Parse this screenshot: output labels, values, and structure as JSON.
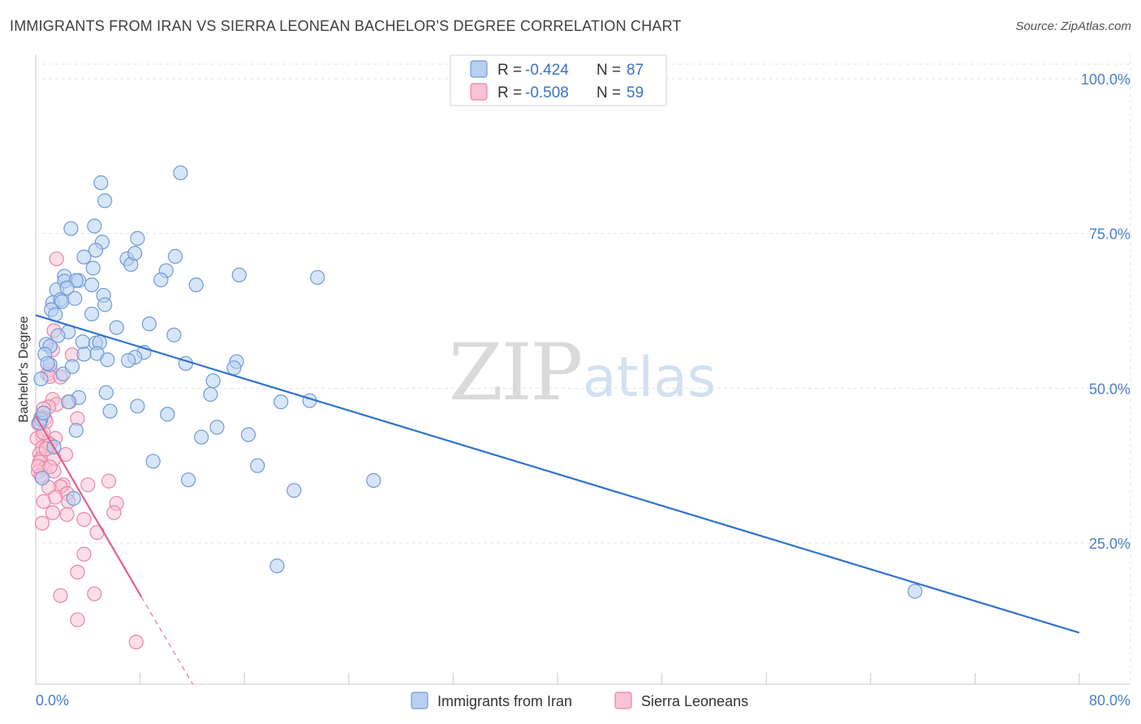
{
  "title": "IMMIGRANTS FROM IRAN VS SIERRA LEONEAN BACHELOR'S DEGREE CORRELATION CHART",
  "source": "Source: ZipAtlas.com",
  "watermark": {
    "zip": "ZIP",
    "atlas": "atlas"
  },
  "colors": {
    "iran_fill": "#b7cff2",
    "iran_stroke": "#6f9ad6",
    "iran_line": "#2f72d0",
    "sierra_fill": "#f7c2d2",
    "sierra_stroke": "#e985a7",
    "sierra_line": "#e0608d",
    "grid": "#e3e3e3",
    "tick_text": "#4a7fc7"
  },
  "legend": {
    "rows": [
      {
        "r_label": "R =",
        "r_value": "-0.424",
        "n_label": "N =",
        "n_value": "87"
      },
      {
        "r_label": "R =",
        "r_value": "-0.508",
        "n_label": "N =",
        "n_value": "59"
      }
    ]
  },
  "chart_data": {
    "type": "scatter",
    "title": "IMMIGRANTS FROM IRAN VS SIERRA LEONEAN BACHELOR'S DEGREE CORRELATION CHART",
    "xlabel": "",
    "ylabel": "Bachelor's Degree",
    "xlim": [
      0,
      80
    ],
    "ylim": [
      0,
      105
    ],
    "x_tick_labels": [
      "0.0%",
      "80.0%"
    ],
    "y_ticks": [
      25,
      50,
      75,
      100
    ],
    "y_tick_labels": [
      "25.0%",
      "50.0%",
      "75.0%",
      "100.0%"
    ],
    "grid": true,
    "legend_position": "top-center",
    "series": [
      {
        "name": "Immigrants from Iran",
        "R": -0.424,
        "N": 87,
        "trend": {
          "x0": 0,
          "y0": 61.8,
          "x1": 80,
          "y1": 10.5
        },
        "points": [
          [
            11.1,
            84.8
          ],
          [
            5.0,
            83.2
          ],
          [
            5.3,
            80.3
          ],
          [
            2.7,
            75.8
          ],
          [
            4.5,
            76.2
          ],
          [
            7.8,
            74.2
          ],
          [
            5.1,
            73.6
          ],
          [
            4.6,
            72.3
          ],
          [
            7.0,
            70.9
          ],
          [
            3.7,
            71.2
          ],
          [
            10.7,
            71.3
          ],
          [
            7.3,
            70.0
          ],
          [
            7.6,
            71.8
          ],
          [
            4.4,
            69.4
          ],
          [
            10.0,
            69.0
          ],
          [
            15.6,
            68.3
          ],
          [
            21.6,
            67.9
          ],
          [
            2.2,
            68.1
          ],
          [
            2.2,
            67.3
          ],
          [
            3.3,
            67.4
          ],
          [
            3.1,
            67.4
          ],
          [
            4.3,
            66.7
          ],
          [
            9.6,
            67.5
          ],
          [
            12.3,
            66.7
          ],
          [
            1.6,
            65.9
          ],
          [
            2.4,
            66.2
          ],
          [
            5.2,
            65.0
          ],
          [
            3.0,
            64.5
          ],
          [
            1.3,
            63.8
          ],
          [
            1.9,
            64.3
          ],
          [
            2.0,
            64.0
          ],
          [
            5.3,
            63.5
          ],
          [
            1.2,
            62.7
          ],
          [
            4.3,
            62.0
          ],
          [
            1.5,
            61.9
          ],
          [
            8.7,
            60.4
          ],
          [
            2.5,
            59.1
          ],
          [
            10.6,
            58.6
          ],
          [
            0.8,
            57.1
          ],
          [
            1.1,
            56.8
          ],
          [
            3.6,
            57.5
          ],
          [
            4.6,
            57.3
          ],
          [
            4.9,
            57.4
          ],
          [
            0.7,
            55.5
          ],
          [
            8.3,
            55.8
          ],
          [
            4.7,
            55.6
          ],
          [
            3.7,
            55.5
          ],
          [
            7.6,
            55.0
          ],
          [
            7.1,
            54.5
          ],
          [
            5.5,
            54.6
          ],
          [
            15.4,
            54.3
          ],
          [
            11.5,
            54.0
          ],
          [
            1.1,
            53.8
          ],
          [
            15.2,
            53.3
          ],
          [
            2.1,
            52.3
          ],
          [
            13.6,
            51.2
          ],
          [
            0.4,
            51.5
          ],
          [
            5.4,
            49.3
          ],
          [
            13.4,
            49.0
          ],
          [
            3.3,
            48.5
          ],
          [
            18.8,
            47.8
          ],
          [
            21.0,
            48.0
          ],
          [
            2.5,
            47.8
          ],
          [
            7.8,
            47.1
          ],
          [
            5.7,
            46.3
          ],
          [
            10.1,
            45.8
          ],
          [
            0.4,
            45.0
          ],
          [
            0.3,
            44.4
          ],
          [
            13.9,
            43.7
          ],
          [
            3.1,
            43.2
          ],
          [
            16.3,
            42.5
          ],
          [
            12.7,
            42.1
          ],
          [
            1.4,
            40.5
          ],
          [
            9.0,
            38.2
          ],
          [
            17.0,
            37.5
          ],
          [
            11.7,
            35.2
          ],
          [
            25.9,
            35.1
          ],
          [
            19.8,
            33.5
          ],
          [
            2.9,
            32.2
          ],
          [
            18.5,
            21.3
          ],
          [
            67.4,
            17.2
          ],
          [
            0.5,
            35.5
          ],
          [
            0.9,
            54.0
          ],
          [
            6.2,
            59.8
          ],
          [
            1.7,
            58.5
          ],
          [
            2.8,
            53.5
          ],
          [
            0.6,
            46.0
          ]
        ]
      },
      {
        "name": "Sierra Leoneans",
        "R": -0.508,
        "N": 59,
        "trend": {
          "x0": 0,
          "y0": 45.5,
          "x1": 8.1,
          "y1": 16.3,
          "dash_x1": 16.0,
          "dash_y1": -12.0
        },
        "points": [
          [
            1.6,
            70.9
          ],
          [
            1.4,
            59.3
          ],
          [
            1.3,
            56.2
          ],
          [
            2.8,
            55.4
          ],
          [
            1.1,
            53.0
          ],
          [
            0.9,
            52.3
          ],
          [
            1.1,
            51.9
          ],
          [
            1.3,
            48.2
          ],
          [
            1.6,
            47.4
          ],
          [
            1.0,
            47.0
          ],
          [
            0.6,
            46.7
          ],
          [
            0.4,
            45.3
          ],
          [
            0.7,
            45.1
          ],
          [
            3.2,
            45.1
          ],
          [
            0.2,
            44.3
          ],
          [
            0.5,
            42.3
          ],
          [
            0.1,
            41.9
          ],
          [
            1.5,
            41.9
          ],
          [
            0.9,
            41.2
          ],
          [
            0.5,
            40.4
          ],
          [
            1.1,
            40.9
          ],
          [
            0.3,
            39.4
          ],
          [
            2.3,
            39.3
          ],
          [
            0.4,
            38.6
          ],
          [
            1.4,
            38.6
          ],
          [
            0.3,
            38.1
          ],
          [
            0.7,
            37.1
          ],
          [
            0.2,
            36.5
          ],
          [
            1.4,
            36.6
          ],
          [
            0.4,
            35.9
          ],
          [
            5.6,
            35.0
          ],
          [
            2.1,
            34.4
          ],
          [
            1.9,
            34.1
          ],
          [
            1.0,
            34.0
          ],
          [
            2.4,
            33.0
          ],
          [
            1.5,
            32.4
          ],
          [
            0.6,
            31.7
          ],
          [
            2.5,
            31.7
          ],
          [
            6.2,
            31.4
          ],
          [
            1.3,
            29.9
          ],
          [
            2.4,
            29.6
          ],
          [
            6.0,
            29.9
          ],
          [
            3.7,
            28.8
          ],
          [
            0.5,
            28.2
          ],
          [
            4.7,
            26.7
          ],
          [
            3.7,
            23.2
          ],
          [
            3.2,
            20.3
          ],
          [
            1.9,
            16.5
          ],
          [
            4.5,
            16.8
          ],
          [
            3.2,
            12.6
          ],
          [
            7.7,
            9.0
          ],
          [
            0.8,
            44.6
          ],
          [
            1.9,
            51.8
          ],
          [
            0.2,
            37.4
          ],
          [
            2.6,
            47.8
          ],
          [
            0.8,
            40.2
          ],
          [
            4.0,
            34.4
          ],
          [
            1.1,
            37.3
          ],
          [
            0.6,
            42.8
          ]
        ]
      }
    ]
  }
}
